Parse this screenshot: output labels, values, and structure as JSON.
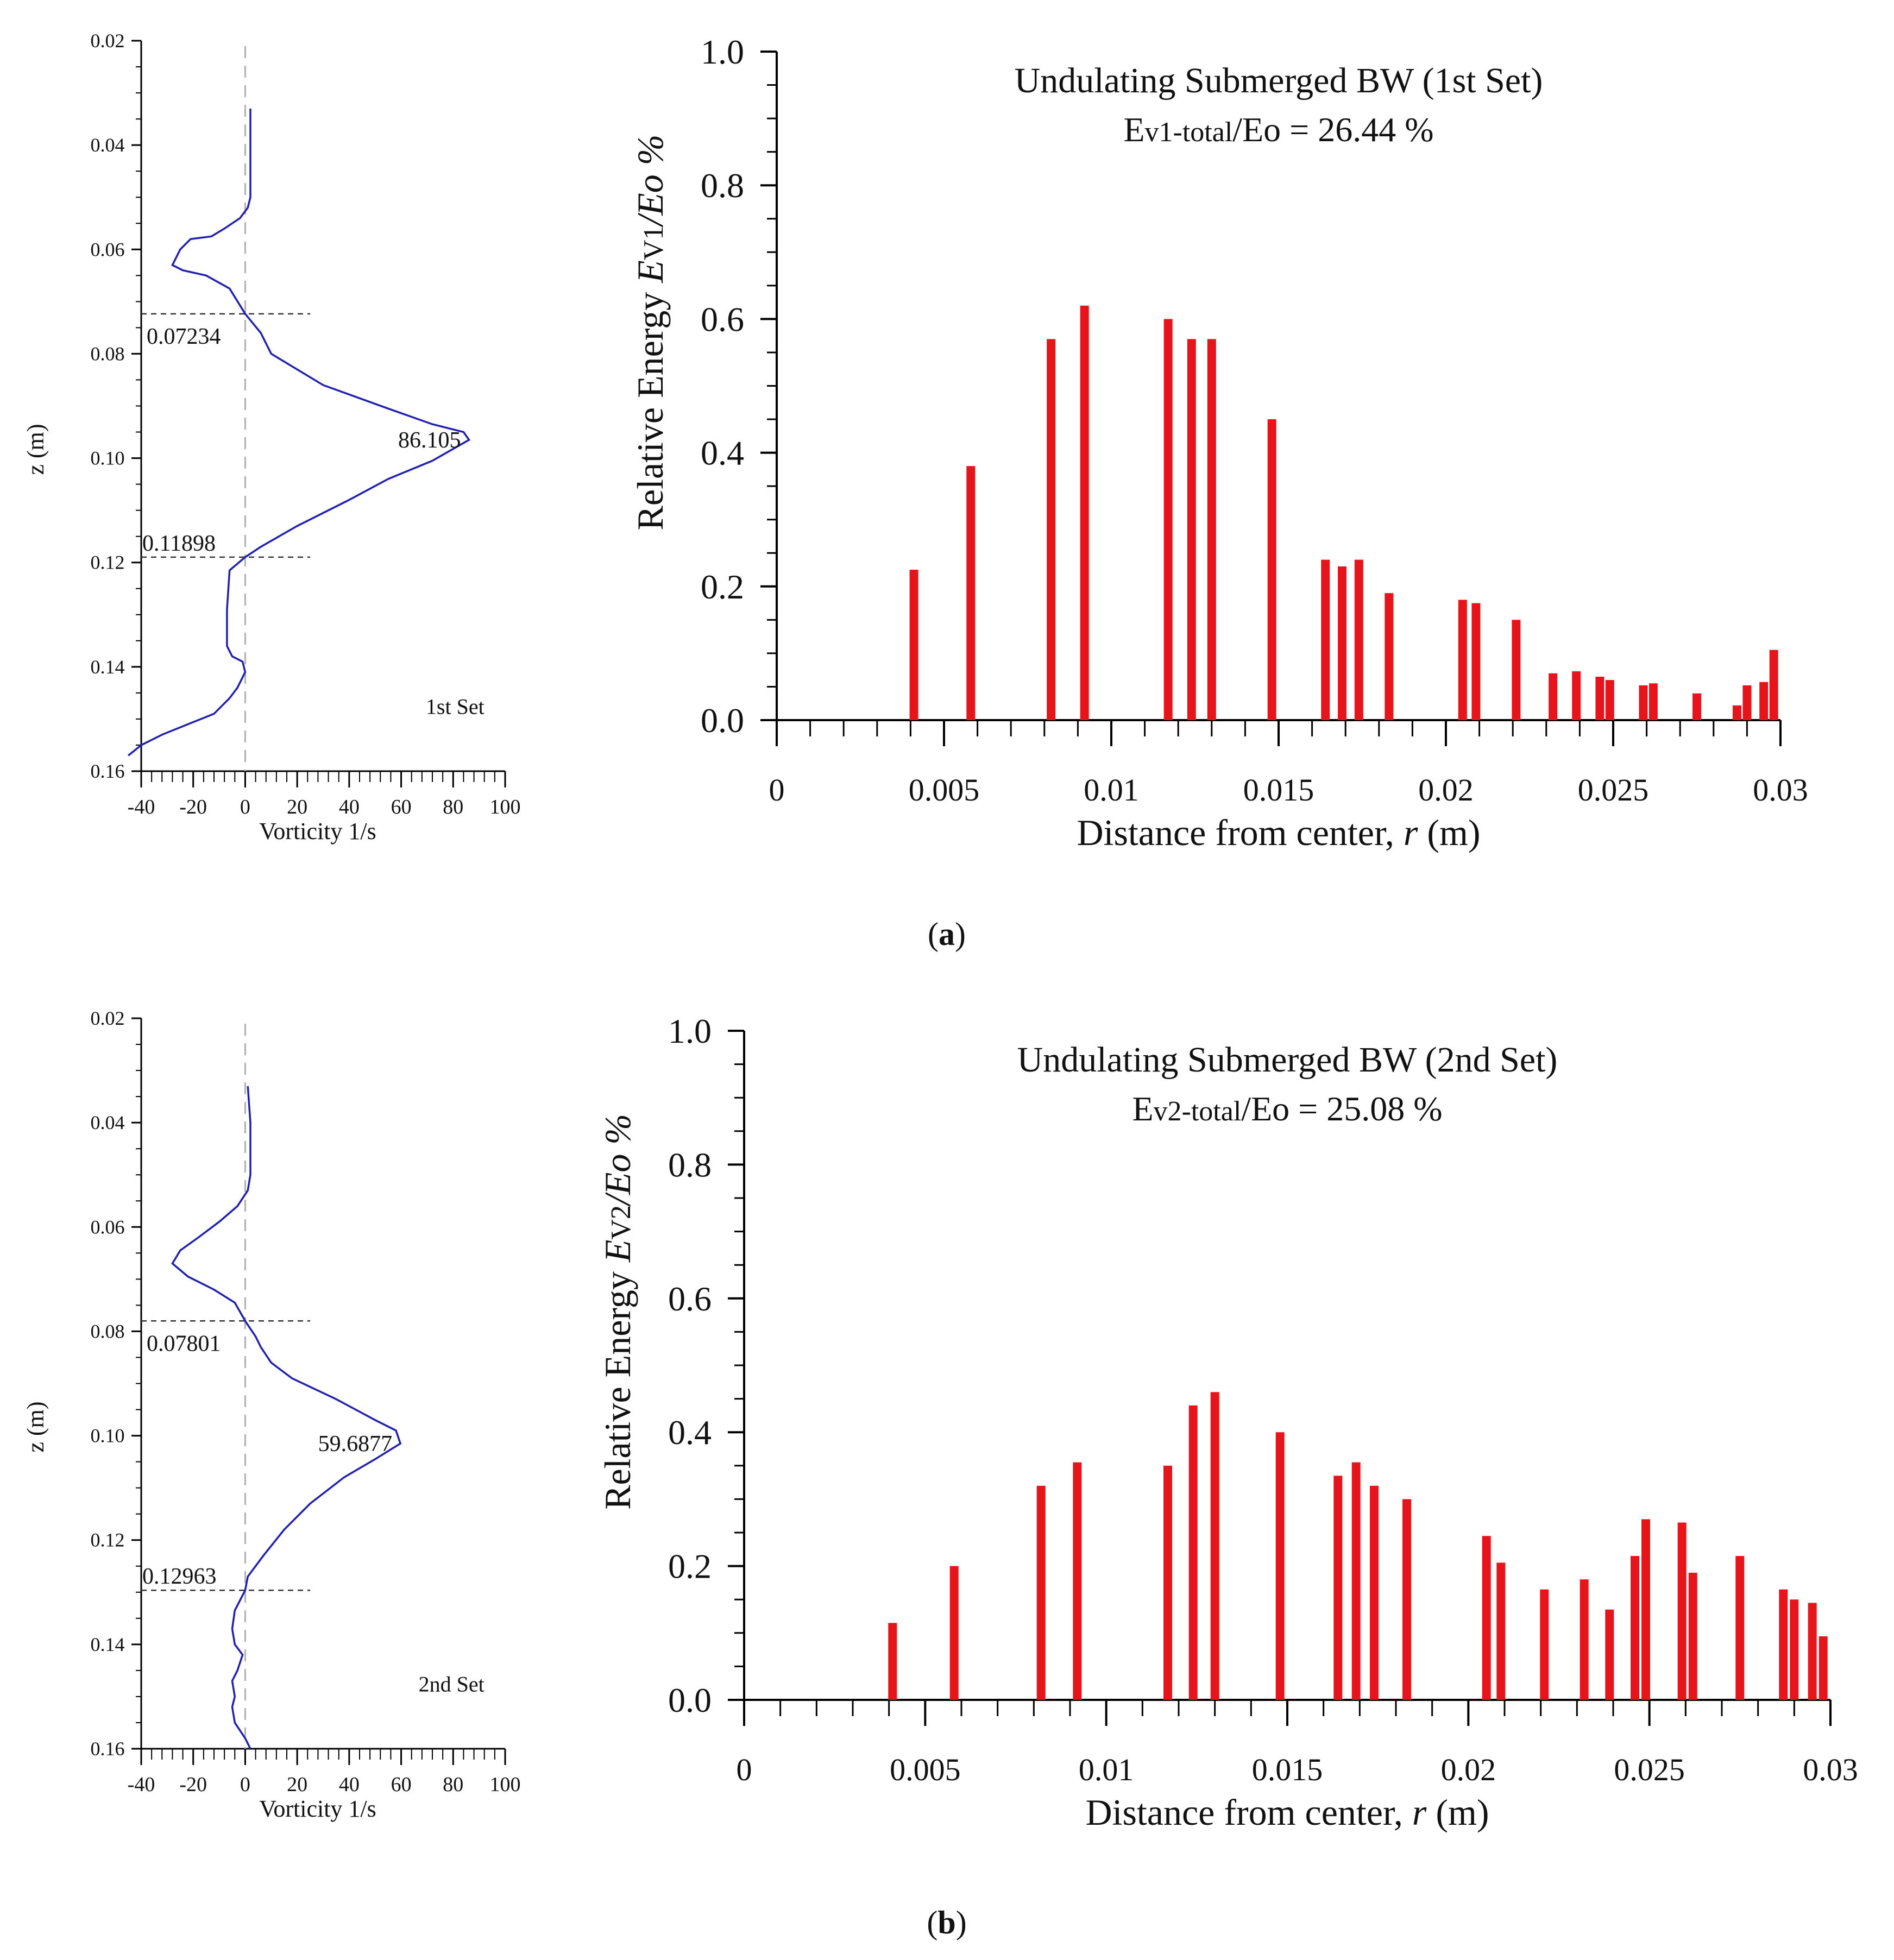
{
  "panels": [
    {
      "label": "a",
      "vorticity": {
        "type": "line",
        "xlabel": "Vorticity  1/s",
        "ylabel": "z (m)",
        "xlim": [
          -40,
          100
        ],
        "ylim": [
          0.02,
          0.16
        ],
        "y_reversed": true,
        "xticks": [
          -40,
          -20,
          0,
          20,
          40,
          60,
          80,
          100
        ],
        "yticks": [
          0.02,
          0.04,
          0.06,
          0.08,
          0.1,
          0.12,
          0.14,
          0.16
        ],
        "ytick_labels": [
          "0.02",
          "0.04",
          "0.06",
          "0.08",
          "0.10",
          "0.12",
          "0.14",
          "0.16"
        ],
        "set_label": "1st Set",
        "color": "#2020b0",
        "points": [
          [
            2,
            0.033
          ],
          [
            2,
            0.04
          ],
          [
            2,
            0.05
          ],
          [
            1,
            0.052
          ],
          [
            -2,
            0.054
          ],
          [
            -8,
            0.056
          ],
          [
            -13,
            0.0575
          ],
          [
            -21,
            0.058
          ],
          [
            -25,
            0.06
          ],
          [
            -28,
            0.063
          ],
          [
            -24,
            0.064
          ],
          [
            -15,
            0.065
          ],
          [
            -6,
            0.0675
          ],
          [
            0,
            0.07234
          ],
          [
            6,
            0.076
          ],
          [
            10,
            0.08
          ],
          [
            30,
            0.086
          ],
          [
            55,
            0.0905
          ],
          [
            72,
            0.0935
          ],
          [
            84,
            0.095
          ],
          [
            86.105,
            0.0965
          ],
          [
            72,
            0.1005
          ],
          [
            55,
            0.104
          ],
          [
            40,
            0.108
          ],
          [
            20,
            0.113
          ],
          [
            6,
            0.117
          ],
          [
            0,
            0.11898
          ],
          [
            -6,
            0.1215
          ],
          [
            -7,
            0.129
          ],
          [
            -7,
            0.136
          ],
          [
            -5,
            0.138
          ],
          [
            -1,
            0.139
          ],
          [
            0,
            0.141
          ],
          [
            -3,
            0.144
          ],
          [
            -6,
            0.146
          ],
          [
            -12,
            0.149
          ],
          [
            -22,
            0.151
          ],
          [
            -32,
            0.153
          ],
          [
            -40,
            0.155
          ],
          [
            -45,
            0.157
          ]
        ],
        "dashed_lines": [
          0.07234,
          0.11898
        ],
        "annotations": [
          "0.07234",
          "86.105",
          "0.11898"
        ]
      },
      "energy": {
        "type": "bar",
        "title": "Undulating Submerged BW (1st Set)",
        "subtitle": "Ev1-total/Eo = 26.44 %",
        "subtitle_parts": {
          "main": "E",
          "sub": "v1-total",
          "rest": "/Eo = 26.44 %"
        },
        "xlabel_main": "Distance from center, ",
        "xlabel_var": "r",
        "xlabel_unit": " (m)",
        "ylabel_main": "Relative Energy  ",
        "ylabel_sym": "E",
        "ylabel_sub": "V1",
        "ylabel_tail": "/Eo %",
        "xlim": [
          0,
          0.03
        ],
        "ylim": [
          0,
          1.0
        ],
        "xticks": [
          0,
          0.005,
          0.01,
          0.015,
          0.02,
          0.025,
          0.03
        ],
        "xtick_labels": [
          "0",
          "0.005",
          "0.01",
          "0.015",
          "0.02",
          "0.025",
          "0.03"
        ],
        "yticks": [
          0,
          0.2,
          0.4,
          0.6,
          0.8,
          1.0
        ],
        "ytick_labels": [
          "0.0",
          "0.2",
          "0.4",
          "0.6",
          "0.8",
          "1.0"
        ],
        "color": "#e8141b",
        "x": [
          0.0041,
          0.0058,
          0.0082,
          0.0092,
          0.0117,
          0.0124,
          0.013,
          0.0148,
          0.0164,
          0.0169,
          0.0174,
          0.0183,
          0.0205,
          0.0209,
          0.0221,
          0.0232,
          0.0239,
          0.0246,
          0.0249,
          0.0259,
          0.0262,
          0.0275,
          0.0287,
          0.029,
          0.0295,
          0.0298
        ],
        "values": [
          0.225,
          0.38,
          0.57,
          0.62,
          0.6,
          0.57,
          0.57,
          0.45,
          0.24,
          0.23,
          0.24,
          0.19,
          0.18,
          0.175,
          0.15,
          0.07,
          0.073,
          0.065,
          0.06,
          0.052,
          0.055,
          0.04,
          0.022,
          0.052,
          0.057,
          0.105
        ]
      }
    },
    {
      "label": "b",
      "vorticity": {
        "type": "line",
        "xlabel": "Vorticity  1/s",
        "ylabel": "z (m)",
        "xlim": [
          -40,
          100
        ],
        "ylim": [
          0.02,
          0.16
        ],
        "y_reversed": true,
        "xticks": [
          -40,
          -20,
          0,
          20,
          40,
          60,
          80,
          100
        ],
        "yticks": [
          0.02,
          0.04,
          0.06,
          0.08,
          0.1,
          0.12,
          0.14,
          0.16
        ],
        "ytick_labels": [
          "0.02",
          "0.04",
          "0.06",
          "0.08",
          "0.10",
          "0.12",
          "0.14",
          "0.16"
        ],
        "set_label": "2nd Set",
        "color": "#2020b0",
        "points": [
          [
            1,
            0.033
          ],
          [
            2,
            0.04
          ],
          [
            2,
            0.05
          ],
          [
            1,
            0.053
          ],
          [
            -3,
            0.056
          ],
          [
            -10,
            0.059
          ],
          [
            -18,
            0.062
          ],
          [
            -25,
            0.0645
          ],
          [
            -28,
            0.067
          ],
          [
            -22,
            0.0695
          ],
          [
            -12,
            0.072
          ],
          [
            -4,
            0.0745
          ],
          [
            0,
            0.07801
          ],
          [
            4,
            0.081
          ],
          [
            6,
            0.083
          ],
          [
            10,
            0.086
          ],
          [
            18,
            0.089
          ],
          [
            35,
            0.093
          ],
          [
            50,
            0.097
          ],
          [
            58,
            0.099
          ],
          [
            59.6877,
            0.1015
          ],
          [
            50,
            0.1045
          ],
          [
            38,
            0.108
          ],
          [
            25,
            0.113
          ],
          [
            15,
            0.118
          ],
          [
            7,
            0.123
          ],
          [
            1,
            0.127
          ],
          [
            0,
            0.12963
          ],
          [
            -4,
            0.1335
          ],
          [
            -5,
            0.137
          ],
          [
            -4,
            0.14
          ],
          [
            -1,
            0.142
          ],
          [
            -3,
            0.145
          ],
          [
            -5,
            0.147
          ],
          [
            -4,
            0.15
          ],
          [
            -5,
            0.152
          ],
          [
            -4,
            0.155
          ],
          [
            0,
            0.158
          ],
          [
            2,
            0.16
          ]
        ],
        "dashed_lines": [
          0.07801,
          0.12963
        ],
        "annotations": [
          "0.07801",
          "59.6877",
          "0.12963"
        ]
      },
      "energy": {
        "type": "bar",
        "title": "Undulating Submerged BW (2nd Set)",
        "subtitle": "Ev2-total/Eo = 25.08 %",
        "subtitle_parts": {
          "main": "E",
          "sub": "v2-total",
          "rest": "/Eo = 25.08 %"
        },
        "xlabel_main": "Distance from center, ",
        "xlabel_var": "r",
        "xlabel_unit": " (m)",
        "ylabel_main": "Relative Energy  ",
        "ylabel_sym": "E",
        "ylabel_sub": "V2",
        "ylabel_tail": "/Eo %",
        "xlim": [
          0,
          0.03
        ],
        "ylim": [
          0,
          1.0
        ],
        "xticks": [
          0,
          0.005,
          0.01,
          0.015,
          0.02,
          0.025,
          0.03
        ],
        "xtick_labels": [
          "0",
          "0.005",
          "0.01",
          "0.015",
          "0.02",
          "0.025",
          "0.03"
        ],
        "yticks": [
          0,
          0.2,
          0.4,
          0.6,
          0.8,
          1.0
        ],
        "ytick_labels": [
          "0.0",
          "0.2",
          "0.4",
          "0.6",
          "0.8",
          "1.0"
        ],
        "color": "#e8141b",
        "x": [
          0.0041,
          0.0058,
          0.0082,
          0.0092,
          0.0117,
          0.0124,
          0.013,
          0.0148,
          0.0164,
          0.0169,
          0.0174,
          0.0183,
          0.0205,
          0.0209,
          0.0221,
          0.0232,
          0.0239,
          0.0246,
          0.0249,
          0.0259,
          0.0262,
          0.0275,
          0.0287,
          0.029,
          0.0295,
          0.0298
        ],
        "values": [
          0.115,
          0.2,
          0.32,
          0.355,
          0.35,
          0.44,
          0.46,
          0.4,
          0.335,
          0.355,
          0.32,
          0.3,
          0.245,
          0.205,
          0.165,
          0.18,
          0.135,
          0.215,
          0.27,
          0.265,
          0.19,
          0.215,
          0.165,
          0.15,
          0.145,
          0.095
        ]
      }
    }
  ],
  "chart_data": [
    {
      "type": "line",
      "panel": "a",
      "title": "",
      "xlabel": "Vorticity  1/s",
      "ylabel": "z (m)",
      "xlim": [
        -40,
        100
      ],
      "ylim": [
        0.16,
        0.02
      ],
      "series": [
        {
          "name": "1st Set",
          "x_from_panel": "panels.0.vorticity.points"
        }
      ],
      "annotations": [
        "0.07234",
        "86.105",
        "0.11898"
      ]
    },
    {
      "type": "bar",
      "panel": "a",
      "title": "Undulating Submerged BW (1st Set)",
      "subtitle": "Ev1-total/Eo = 26.44 %",
      "xlabel": "Distance from center, r (m)",
      "ylabel": "Relative Energy  EV1/Eo %",
      "xlim": [
        0,
        0.03
      ],
      "ylim": [
        0,
        1.0
      ],
      "x": [
        0.0041,
        0.0058,
        0.0082,
        0.0092,
        0.0117,
        0.0124,
        0.013,
        0.0148,
        0.0164,
        0.0169,
        0.0174,
        0.0183,
        0.0205,
        0.0209,
        0.0221,
        0.0232,
        0.0239,
        0.0246,
        0.0249,
        0.0259,
        0.0262,
        0.0275,
        0.0287,
        0.029,
        0.0295,
        0.0298
      ],
      "values": [
        0.225,
        0.38,
        0.57,
        0.62,
        0.6,
        0.57,
        0.57,
        0.45,
        0.24,
        0.23,
        0.24,
        0.19,
        0.18,
        0.175,
        0.15,
        0.07,
        0.073,
        0.065,
        0.06,
        0.052,
        0.055,
        0.04,
        0.022,
        0.052,
        0.057,
        0.105
      ]
    },
    {
      "type": "line",
      "panel": "b",
      "title": "",
      "xlabel": "Vorticity  1/s",
      "ylabel": "z (m)",
      "xlim": [
        -40,
        100
      ],
      "ylim": [
        0.16,
        0.02
      ],
      "series": [
        {
          "name": "2nd Set",
          "x_from_panel": "panels.1.vorticity.points"
        }
      ],
      "annotations": [
        "0.07801",
        "59.6877",
        "0.12963"
      ]
    },
    {
      "type": "bar",
      "panel": "b",
      "title": "Undulating Submerged BW (2nd Set)",
      "subtitle": "Ev2-total/Eo = 25.08 %",
      "xlabel": "Distance from center, r (m)",
      "ylabel": "Relative Energy  EV2/Eo %",
      "xlim": [
        0,
        0.03
      ],
      "ylim": [
        0,
        1.0
      ],
      "x": [
        0.0041,
        0.0058,
        0.0082,
        0.0092,
        0.0117,
        0.0124,
        0.013,
        0.0148,
        0.0164,
        0.0169,
        0.0174,
        0.0183,
        0.0205,
        0.0209,
        0.0221,
        0.0232,
        0.0239,
        0.0246,
        0.0249,
        0.0259,
        0.0262,
        0.0275,
        0.0287,
        0.029,
        0.0295,
        0.0298
      ],
      "values": [
        0.115,
        0.2,
        0.32,
        0.355,
        0.35,
        0.44,
        0.46,
        0.4,
        0.335,
        0.355,
        0.32,
        0.3,
        0.245,
        0.205,
        0.165,
        0.18,
        0.135,
        0.215,
        0.27,
        0.265,
        0.19,
        0.215,
        0.165,
        0.15,
        0.145,
        0.095
      ]
    }
  ]
}
